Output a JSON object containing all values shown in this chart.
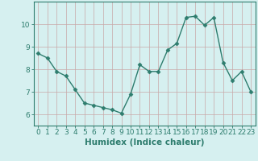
{
  "x": [
    0,
    1,
    2,
    3,
    4,
    5,
    6,
    7,
    8,
    9,
    10,
    11,
    12,
    13,
    14,
    15,
    16,
    17,
    18,
    19,
    20,
    21,
    22,
    23
  ],
  "y": [
    8.7,
    8.5,
    7.9,
    7.7,
    7.1,
    6.5,
    6.4,
    6.3,
    6.2,
    6.05,
    6.9,
    8.2,
    7.9,
    7.9,
    8.85,
    9.15,
    10.3,
    10.35,
    9.95,
    10.3,
    8.3,
    7.5,
    7.9,
    7.0
  ],
  "line_color": "#2e7d6e",
  "marker": "D",
  "markersize": 2.5,
  "linewidth": 1.0,
  "background_color": "#d6f0f0",
  "grid_color": "#b8d8d8",
  "xlabel": "Humidex (Indice chaleur)",
  "xlabel_fontsize": 7.5,
  "tick_fontsize": 6.5,
  "ylim": [
    5.5,
    11.0
  ],
  "xlim": [
    -0.5,
    23.5
  ],
  "yticks": [
    6,
    7,
    8,
    9,
    10
  ],
  "xticks": [
    0,
    1,
    2,
    3,
    4,
    5,
    6,
    7,
    8,
    9,
    10,
    11,
    12,
    13,
    14,
    15,
    16,
    17,
    18,
    19,
    20,
    21,
    22,
    23
  ]
}
